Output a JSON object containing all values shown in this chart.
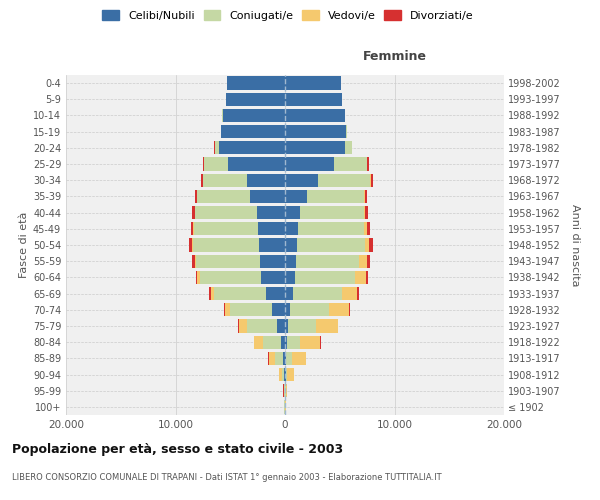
{
  "age_groups": [
    "100+",
    "95-99",
    "90-94",
    "85-89",
    "80-84",
    "75-79",
    "70-74",
    "65-69",
    "60-64",
    "55-59",
    "50-54",
    "45-49",
    "40-44",
    "35-39",
    "30-34",
    "25-29",
    "20-24",
    "15-19",
    "10-14",
    "5-9",
    "0-4"
  ],
  "birth_years": [
    "≤ 1902",
    "1903-1907",
    "1908-1912",
    "1913-1917",
    "1918-1922",
    "1923-1927",
    "1928-1932",
    "1933-1937",
    "1938-1942",
    "1943-1947",
    "1948-1952",
    "1953-1957",
    "1958-1962",
    "1963-1967",
    "1968-1972",
    "1973-1977",
    "1978-1982",
    "1983-1987",
    "1988-1992",
    "1993-1997",
    "1998-2002"
  ],
  "colors": {
    "celibe": "#3a6ea5",
    "coniugato": "#c5d8a4",
    "vedovo": "#f5c96e",
    "divorziato": "#d63030"
  },
  "male": {
    "celibe": [
      20,
      30,
      80,
      200,
      400,
      700,
      1200,
      1700,
      2200,
      2300,
      2400,
      2500,
      2600,
      3200,
      3500,
      5200,
      6000,
      5800,
      5700,
      5400,
      5300
    ],
    "coniugato": [
      30,
      50,
      200,
      700,
      1600,
      2800,
      3800,
      4800,
      5600,
      5800,
      6000,
      5800,
      5600,
      4800,
      4000,
      2200,
      400,
      30,
      10,
      5,
      5
    ],
    "vedovo": [
      10,
      50,
      250,
      600,
      800,
      700,
      500,
      300,
      200,
      150,
      100,
      80,
      60,
      40,
      30,
      20,
      10,
      5,
      5,
      5,
      5
    ],
    "divorziato": [
      5,
      10,
      10,
      20,
      30,
      50,
      80,
      100,
      150,
      200,
      250,
      250,
      200,
      150,
      100,
      80,
      30,
      10,
      5,
      5,
      5
    ]
  },
  "female": {
    "nubile": [
      15,
      20,
      50,
      100,
      200,
      300,
      500,
      700,
      900,
      1000,
      1100,
      1200,
      1400,
      2000,
      3000,
      4500,
      5500,
      5600,
      5500,
      5200,
      5100
    ],
    "coniugata": [
      20,
      30,
      150,
      500,
      1200,
      2500,
      3500,
      4500,
      5500,
      5800,
      6200,
      6000,
      5800,
      5200,
      4800,
      3000,
      600,
      80,
      10,
      5,
      5
    ],
    "vedova": [
      30,
      150,
      600,
      1300,
      1800,
      2000,
      1800,
      1400,
      1000,
      700,
      400,
      250,
      150,
      80,
      50,
      30,
      20,
      10,
      5,
      5,
      5
    ],
    "divorziata": [
      5,
      10,
      15,
      30,
      50,
      80,
      100,
      150,
      200,
      250,
      300,
      280,
      200,
      180,
      160,
      100,
      30,
      10,
      5,
      5,
      5
    ]
  },
  "xlim": 20000,
  "xticks": [
    -20000,
    -10000,
    0,
    10000,
    20000
  ],
  "xticklabels": [
    "20.000",
    "10.000",
    "0",
    "10.000",
    "20.000"
  ],
  "title": "Popolazione per età, sesso e stato civile - 2003",
  "subtitle": "LIBERO CONSORZIO COMUNALE DI TRAPANI - Dati ISTAT 1° gennaio 2003 - Elaborazione TUTTITALIA.IT",
  "ylabel_left": "Fasce di età",
  "ylabel_right": "Anni di nascita",
  "label_femmine": "Femmine",
  "legend_labels": [
    "Celibi/Nubili",
    "Coniugati/e",
    "Vedovi/e",
    "Divorziati/e"
  ],
  "bg_color": "#f0f0f0",
  "grid_color": "#cccccc"
}
